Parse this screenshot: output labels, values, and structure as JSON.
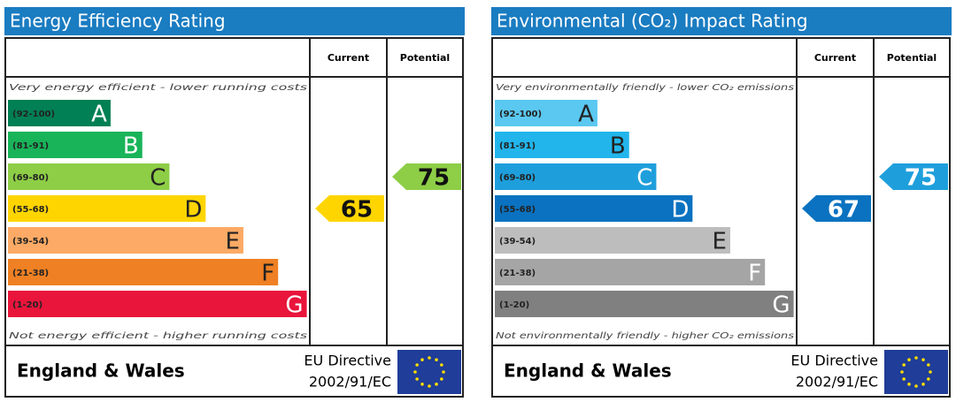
{
  "panels": [
    {
      "title": "Energy Efficiency Rating",
      "header_current": "Current",
      "header_potential": "Potential",
      "top_note": "Very energy efficient - lower running costs",
      "bottom_note": "Not energy efficient - higher running costs",
      "bands": [
        {
          "range": "(92-100)",
          "letter": "A",
          "color": "#008054",
          "text_color": "#ffffff"
        },
        {
          "range": "(81-91)",
          "letter": "B",
          "color": "#19b459",
          "text_color": "#ffffff"
        },
        {
          "range": "(69-80)",
          "letter": "C",
          "color": "#8dce46",
          "text_color": "#222222"
        },
        {
          "range": "(55-68)",
          "letter": "D",
          "color": "#ffd500",
          "text_color": "#222222"
        },
        {
          "range": "(39-54)",
          "letter": "E",
          "color": "#fcaa65",
          "text_color": "#222222"
        },
        {
          "range": "(21-38)",
          "letter": "F",
          "color": "#ef8023",
          "text_color": "#222222"
        },
        {
          "range": "(1-20)",
          "letter": "G",
          "color": "#e9153b",
          "text_color": "#ffffff"
        }
      ],
      "current": 65,
      "potential": 75,
      "footer_region": "England & Wales",
      "footer_directive": [
        "EU Directive",
        "2002/91/EC"
      ]
    },
    {
      "title": "Environmental (CO₂) Impact Rating",
      "header_current": "Current",
      "header_potential": "Potential",
      "top_note": "Very environmentally friendly - lower CO₂ emissions",
      "bottom_note": "Not environmentally friendly - higher CO₂ emissions",
      "bands": [
        {
          "range": "(92-100)",
          "letter": "A",
          "color": "#5ac8f0",
          "text_color": "#222222"
        },
        {
          "range": "(81-91)",
          "letter": "B",
          "color": "#22b5eb",
          "text_color": "#222222"
        },
        {
          "range": "(69-80)",
          "letter": "C",
          "color": "#1e9fdc",
          "text_color": "#ffffff"
        },
        {
          "range": "(55-68)",
          "letter": "D",
          "color": "#0a72c0",
          "text_color": "#ffffff"
        },
        {
          "range": "(39-54)",
          "letter": "E",
          "color": "#bdbdbd",
          "text_color": "#222222"
        },
        {
          "range": "(21-38)",
          "letter": "F",
          "color": "#a5a5a5",
          "text_color": "#ffffff"
        },
        {
          "range": "(1-20)",
          "letter": "G",
          "color": "#808080",
          "text_color": "#ffffff"
        }
      ],
      "current": 67,
      "potential": 75,
      "footer_region": "England & Wales",
      "footer_directive": [
        "EU Directive",
        "2002/91/EC"
      ]
    }
  ]
}
